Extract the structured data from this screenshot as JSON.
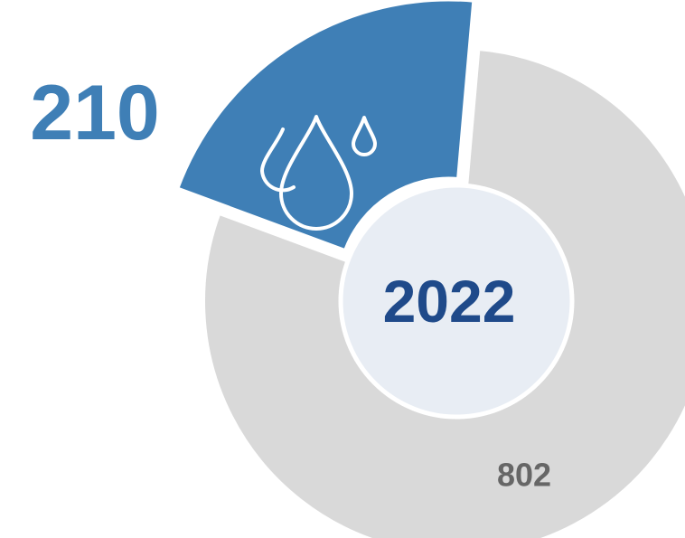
{
  "chart_data": {
    "type": "pie",
    "center_label": "2022",
    "slices": [
      {
        "value": 210,
        "label": "210",
        "color": "#3f7fb6",
        "icon": "water-drops-icon"
      },
      {
        "value": 802,
        "label": "802",
        "color": "#d9d9d9"
      }
    ]
  },
  "colors": {
    "background": "#ffffff",
    "highlight_slice": "#3f7fb6",
    "other_slice": "#d9d9d9",
    "center_fill": "#e8edf4",
    "center_text": "#1f4a8a",
    "highlight_label": "#3f7fb6",
    "other_label": "#666666",
    "icon_stroke": "#ffffff"
  }
}
